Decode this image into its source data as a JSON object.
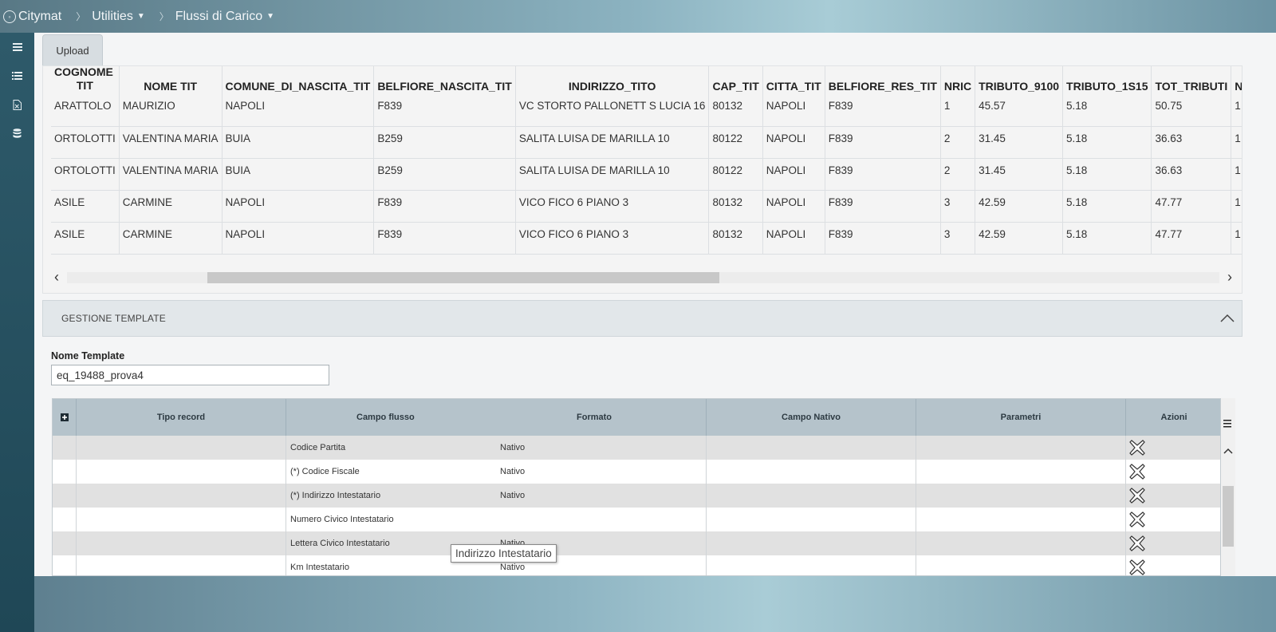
{
  "topbar": {
    "app_name": "Citymat",
    "crumbs": [
      "Utilities",
      "Flussi di Carico"
    ]
  },
  "sidebar": {
    "icons": [
      "menu-icon",
      "list-icon",
      "excel-file-icon",
      "database-icon"
    ]
  },
  "upload_tab": {
    "label": "Upload"
  },
  "data_table": {
    "columns": [
      "COGNOME_TIT",
      "NOME TIT",
      "COMUNE_DI_NASCITA_TIT",
      "BELFIORE_NASCITA_TIT",
      "INDIRIZZO_TITO",
      "CAP_TIT",
      "CITTA_TIT",
      "BELFIORE_RES_TIT",
      "NRIC",
      "TRIBUTO_9100",
      "TRIBUTO_1S15",
      "TOT_TRIBUTI",
      "NI"
    ],
    "column_header_visible": [
      "COGNOME\nTIT",
      "NOME TIT",
      "COMUNE_DI_NASCITA_TIT",
      "BELFIORE_NASCITA_TIT",
      "INDIRIZZO_TITO",
      "CAP_TIT",
      "CITTA_TIT",
      "BELFIORE_RES_TIT",
      "NRIC",
      "TRIBUTO_9100",
      "TRIBUTO_1S15",
      "TOT_TRIBUTI",
      "NI"
    ],
    "rows": [
      [
        "ARATTOLO",
        "MAURIZIO",
        "NAPOLI",
        "F839",
        "VC STORTO PALLONETT S LUCIA 16",
        "80132",
        "NAPOLI",
        "F839",
        "1",
        "45.57",
        "5.18",
        "50.75",
        "1"
      ],
      [
        "ORTOLOTTI",
        "VALENTINA MARIA",
        "BUIA",
        "B259",
        "SALITA LUISA DE MARILLA 10",
        "80122",
        "NAPOLI",
        "F839",
        "2",
        "31.45",
        "5.18",
        "36.63",
        "1"
      ],
      [
        "ORTOLOTTI",
        "VALENTINA MARIA",
        "BUIA",
        "B259",
        "SALITA LUISA DE MARILLA 10",
        "80122",
        "NAPOLI",
        "F839",
        "2",
        "31.45",
        "5.18",
        "36.63",
        "1"
      ],
      [
        "ASILE",
        "CARMINE",
        "NAPOLI",
        "F839",
        "VICO FICO 6 PIANO 3",
        "80132",
        "NAPOLI",
        "F839",
        "3",
        "42.59",
        "5.18",
        "47.77",
        "1"
      ],
      [
        "ASILE",
        "CARMINE",
        "NAPOLI",
        "F839",
        "VICO FICO 6 PIANO 3",
        "80132",
        "NAPOLI",
        "F839",
        "3",
        "42.59",
        "5.18",
        "47.77",
        "1"
      ]
    ]
  },
  "gestione": {
    "title": "GESTIONE TEMPLATE",
    "nome_label": "Nome Template",
    "nome_value": "eq_19488_prova4"
  },
  "template_grid": {
    "headers": [
      "Tipo record",
      "Campo flusso",
      "Formato",
      "Campo Nativo",
      "Parametri",
      "Azioni"
    ],
    "rows": [
      {
        "campo": "Codice Partita",
        "formato": "Nativo"
      },
      {
        "campo": "(*) Codice Fiscale",
        "formato": "Nativo"
      },
      {
        "campo": "(*) Indirizzo Intestatario",
        "formato": "Nativo"
      },
      {
        "campo": "Numero Civico Intestatario",
        "formato": ""
      },
      {
        "campo": "Lettera Civico Intestatario",
        "formato": "Nativo"
      },
      {
        "campo": "Km Intestatario",
        "formato": "Nativo"
      }
    ]
  },
  "tooltip": {
    "text": "Indirizzo Intestatario"
  }
}
